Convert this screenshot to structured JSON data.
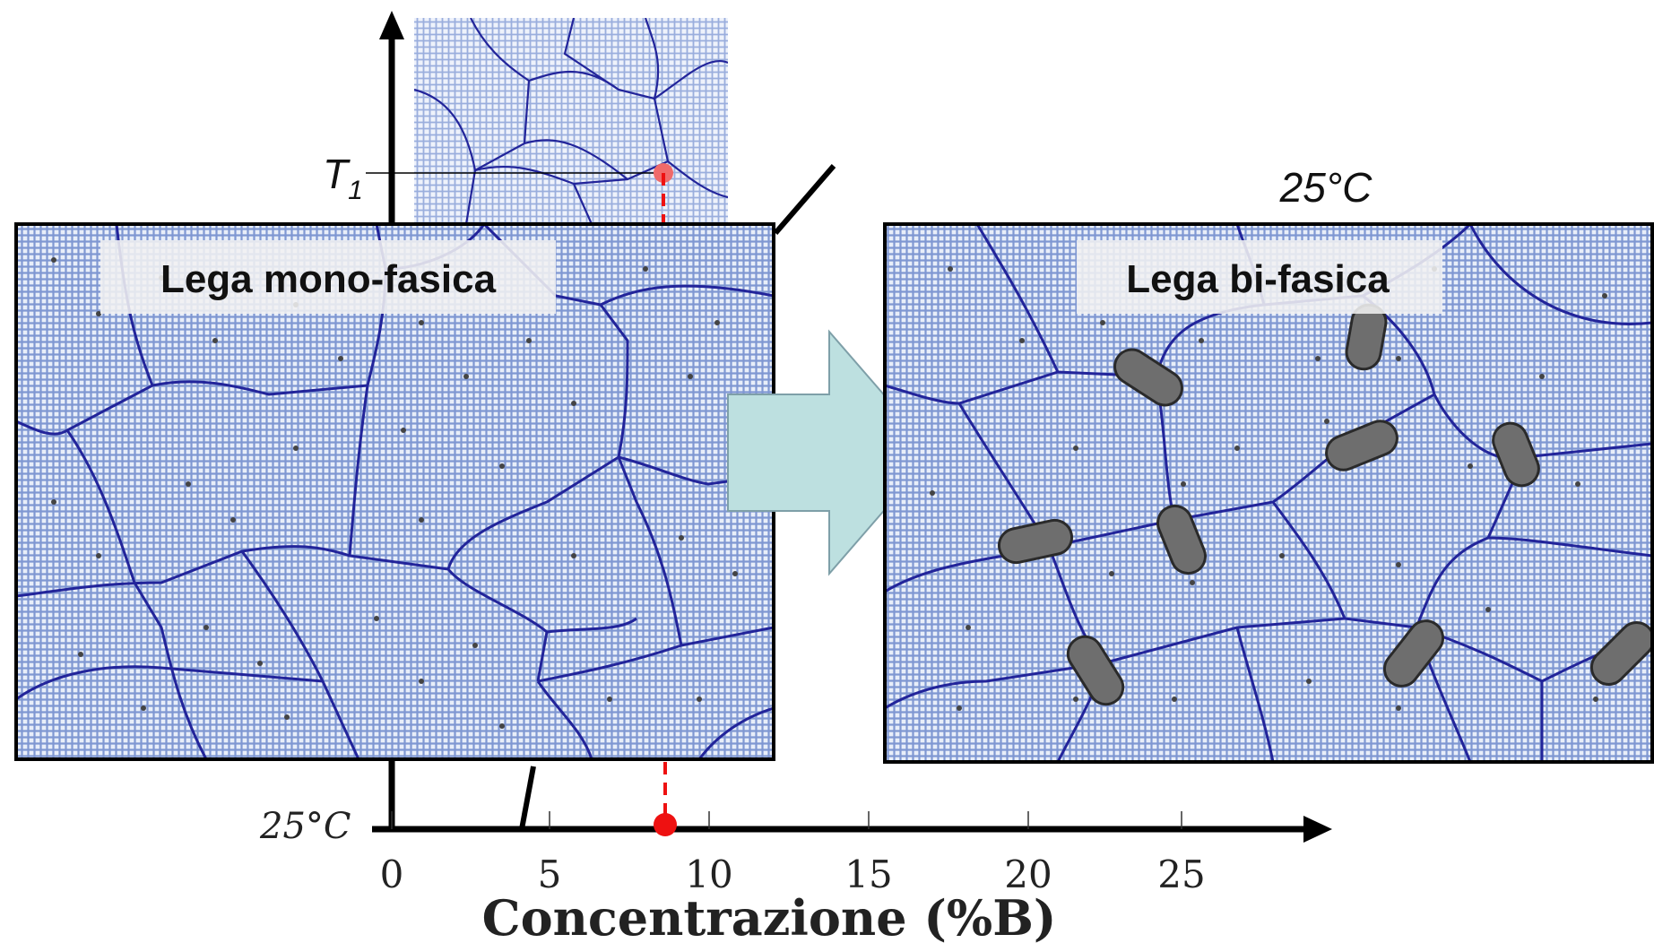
{
  "temperature_top_label": "T",
  "temperature_top_subscript": "1",
  "temperature_bottom_label": "25°C",
  "right_panel_temperature": "25°C",
  "left_panel_label": "Lega mono-fasica",
  "right_panel_label": "Lega bi-fasica",
  "x_axis_title": "Concentrazione (%B)",
  "x_ticks": [
    "0",
    "5",
    "10",
    "15",
    "20",
    "25"
  ],
  "marked_concentration": 8.6,
  "colors": {
    "grain_fill": "#c9d6ee",
    "grain_boundary": "#22249a",
    "arrow_fill": "#bde0e0",
    "marker": "#ee1111",
    "precipitate": "#6e6e6e"
  }
}
